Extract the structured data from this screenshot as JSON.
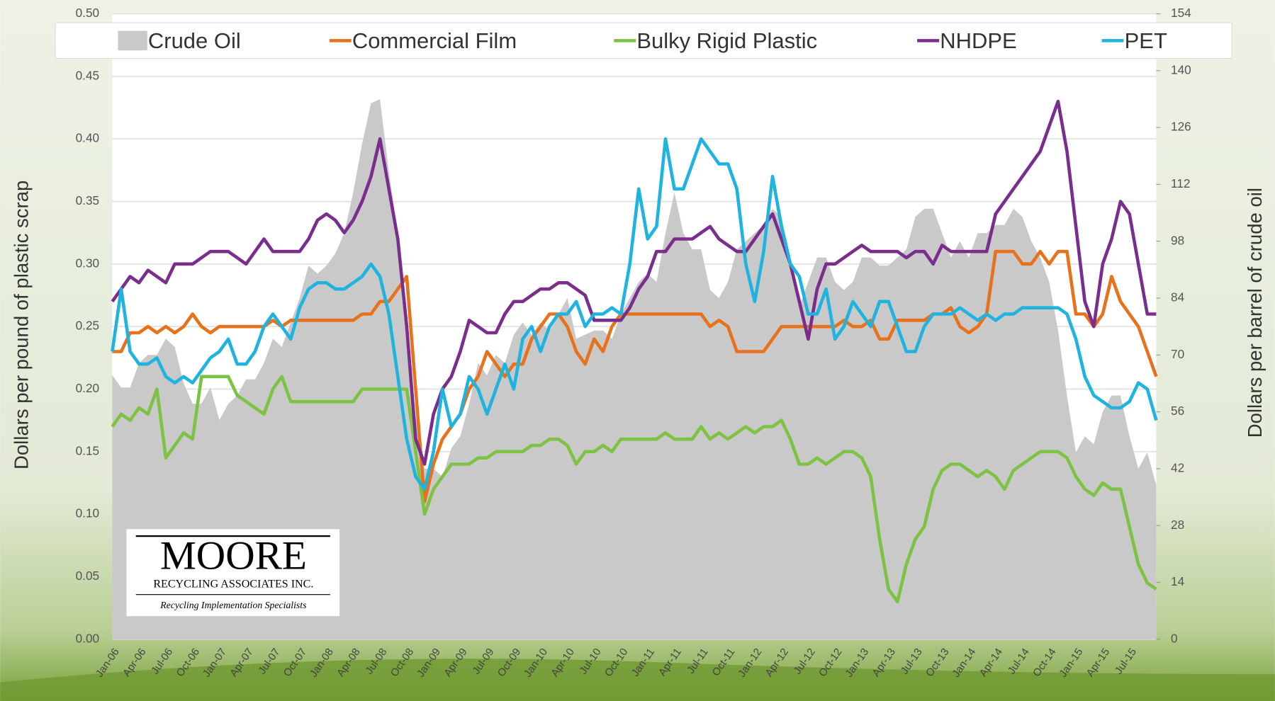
{
  "chart_data": {
    "type": "line",
    "ylabel": "Dollars per pound of plastic scrap",
    "y2label": "Dollars per barrel of crude oil",
    "ylim": [
      0,
      0.5
    ],
    "yticks": [
      {
        "value": 0,
        "label": "0.00"
      },
      0.05,
      {
        "value": 0.1,
        "label": "0.10"
      },
      0.15,
      {
        "value": 0.2,
        "label": "0.20"
      },
      0.25,
      {
        "value": 0.3,
        "label": "0.30"
      },
      0.35,
      {
        "value": 0.4,
        "label": "0.40"
      },
      0.45,
      {
        "value": 0.5,
        "label": "0.50"
      }
    ],
    "y2lim": [
      0,
      154
    ],
    "y2ticks": [
      0,
      14,
      28,
      42,
      56,
      70,
      84,
      98,
      112,
      126,
      140,
      154
    ],
    "grid": true,
    "logo_text": [
      "MOORE",
      "RECYCLING ASSOCIATES INC.",
      "Recycling Implementation Specialists"
    ],
    "categories": [
      "Jan-06",
      null,
      null,
      "Apr-06",
      null,
      null,
      "Jul-06",
      null,
      null,
      "Oct-06",
      null,
      null,
      "Jan-07",
      null,
      null,
      "Apr-07",
      null,
      null,
      "Jul-07",
      null,
      null,
      "Oct-07",
      null,
      null,
      "Jan-08",
      null,
      null,
      "Apr-08",
      null,
      null,
      "Jul-08",
      null,
      null,
      "Oct-08",
      null,
      null,
      "Jan-09",
      null,
      null,
      "Apr-09",
      null,
      null,
      "Jul-09",
      null,
      null,
      "Oct-09",
      null,
      null,
      "Jan-10",
      null,
      null,
      "Apr-10",
      null,
      null,
      "Jul-10",
      null,
      null,
      "Oct-10",
      null,
      null,
      "Jan-11",
      null,
      null,
      "Apr-11",
      null,
      null,
      "Jul-11",
      null,
      null,
      "Oct-11",
      null,
      null,
      "Jan-12",
      null,
      null,
      "Apr-12",
      null,
      null,
      "Jul-12",
      null,
      null,
      "Oct-12",
      null,
      null,
      "Jan-13",
      null,
      null,
      "Apr-13",
      null,
      null,
      "Jul-13",
      null,
      null,
      "Oct-13",
      null,
      null,
      "Jan-14",
      null,
      null,
      "Apr-14",
      null,
      null,
      "Jul-14",
      null,
      null,
      "Oct-14",
      null,
      null,
      "Jan-15",
      null,
      null,
      "Apr-15",
      null,
      null,
      "Jul-15",
      null,
      null,
      null
    ],
    "series": [
      {
        "name": "Crude Oil",
        "color": "#c9c9c9",
        "style": "area",
        "axis": "y2",
        "values": [
          65,
          62,
          62,
          68,
          70,
          70,
          74,
          72,
          63,
          58,
          58,
          62,
          54,
          58,
          60,
          64,
          64,
          68,
          74,
          72,
          78,
          84,
          92,
          90,
          92,
          95,
          100,
          110,
          122,
          132,
          133,
          115,
          100,
          75,
          55,
          42,
          42,
          40,
          47,
          50,
          58,
          68,
          65,
          70,
          68,
          75,
          78,
          75,
          78,
          76,
          80,
          84,
          74,
          75,
          76,
          76,
          74,
          80,
          84,
          88,
          90,
          88,
          100,
          110,
          100,
          96,
          96,
          86,
          84,
          88,
          96,
          98,
          100,
          102,
          106,
          104,
          94,
          82,
          88,
          94,
          94,
          88,
          86,
          88,
          94,
          94,
          92,
          92,
          94,
          96,
          104,
          106,
          106,
          100,
          94,
          98,
          94,
          100,
          100,
          102,
          102,
          106,
          104,
          98,
          94,
          88,
          76,
          60,
          46,
          50,
          48,
          56,
          60,
          60,
          50,
          42,
          46,
          38
        ]
      },
      {
        "name": "Commercial Film",
        "color": "#e8711c",
        "style": "line",
        "values": [
          0.23,
          0.23,
          0.245,
          0.245,
          0.25,
          0.245,
          0.25,
          0.245,
          0.25,
          0.26,
          0.25,
          0.245,
          0.25,
          0.25,
          0.25,
          0.25,
          0.25,
          0.25,
          0.255,
          0.25,
          0.255,
          0.255,
          0.255,
          0.255,
          0.255,
          0.255,
          0.255,
          0.255,
          0.26,
          0.26,
          0.27,
          0.27,
          0.28,
          0.29,
          0.2,
          0.11,
          0.14,
          0.16,
          0.17,
          0.18,
          0.2,
          0.21,
          0.23,
          0.22,
          0.21,
          0.22,
          0.22,
          0.24,
          0.25,
          0.26,
          0.26,
          0.25,
          0.23,
          0.22,
          0.24,
          0.23,
          0.25,
          0.26,
          0.26,
          0.26,
          0.26,
          0.26,
          0.26,
          0.26,
          0.26,
          0.26,
          0.26,
          0.25,
          0.255,
          0.25,
          0.23,
          0.23,
          0.23,
          0.23,
          0.24,
          0.25,
          0.25,
          0.25,
          0.25,
          0.25,
          0.25,
          0.25,
          0.255,
          0.25,
          0.25,
          0.255,
          0.24,
          0.24,
          0.255,
          0.255,
          0.255,
          0.255,
          0.26,
          0.26,
          0.265,
          0.25,
          0.245,
          0.25,
          0.26,
          0.31,
          0.31,
          0.31,
          0.3,
          0.3,
          0.31,
          0.3,
          0.31,
          0.31,
          0.26,
          0.26,
          0.25,
          0.26,
          0.29,
          0.27,
          0.26,
          0.25,
          0.23,
          0.21
        ]
      },
      {
        "name": "Bulky Rigid Plastic",
        "color": "#7dc242",
        "style": "line",
        "values": [
          0.17,
          0.18,
          0.175,
          0.185,
          0.18,
          0.2,
          0.145,
          0.155,
          0.165,
          0.16,
          0.21,
          0.21,
          0.21,
          0.21,
          0.195,
          0.19,
          0.185,
          0.18,
          0.2,
          0.21,
          0.19,
          0.19,
          0.19,
          0.19,
          0.19,
          0.19,
          0.19,
          0.19,
          0.2,
          0.2,
          0.2,
          0.2,
          0.2,
          0.2,
          0.15,
          0.1,
          0.12,
          0.13,
          0.14,
          0.14,
          0.14,
          0.145,
          0.145,
          0.15,
          0.15,
          0.15,
          0.15,
          0.155,
          0.155,
          0.16,
          0.16,
          0.155,
          0.14,
          0.15,
          0.15,
          0.155,
          0.15,
          0.16,
          0.16,
          0.16,
          0.16,
          0.16,
          0.165,
          0.16,
          0.16,
          0.16,
          0.17,
          0.16,
          0.165,
          0.16,
          0.165,
          0.17,
          0.165,
          0.17,
          0.17,
          0.175,
          0.16,
          0.14,
          0.14,
          0.145,
          0.14,
          0.145,
          0.15,
          0.15,
          0.145,
          0.13,
          0.08,
          0.04,
          0.03,
          0.06,
          0.08,
          0.09,
          0.12,
          0.135,
          0.14,
          0.14,
          0.135,
          0.13,
          0.135,
          0.13,
          0.12,
          0.135,
          0.14,
          0.145,
          0.15,
          0.15,
          0.15,
          0.145,
          0.13,
          0.12,
          0.115,
          0.125,
          0.12,
          0.12,
          0.09,
          0.06,
          0.045,
          0.04
        ]
      },
      {
        "name": "NHDPE",
        "color": "#7b2d8e",
        "style": "line",
        "values": [
          0.27,
          0.28,
          0.29,
          0.285,
          0.295,
          0.29,
          0.285,
          0.3,
          0.3,
          0.3,
          0.305,
          0.31,
          0.31,
          0.31,
          0.305,
          0.3,
          0.31,
          0.32,
          0.31,
          0.31,
          0.31,
          0.31,
          0.32,
          0.335,
          0.34,
          0.335,
          0.325,
          0.335,
          0.35,
          0.37,
          0.4,
          0.36,
          0.32,
          0.25,
          0.16,
          0.14,
          0.18,
          0.2,
          0.21,
          0.23,
          0.255,
          0.25,
          0.245,
          0.245,
          0.26,
          0.27,
          0.27,
          0.275,
          0.28,
          0.28,
          0.285,
          0.285,
          0.28,
          0.275,
          0.255,
          0.255,
          0.255,
          0.255,
          0.265,
          0.28,
          0.29,
          0.31,
          0.31,
          0.32,
          0.32,
          0.32,
          0.325,
          0.33,
          0.32,
          0.315,
          0.31,
          0.31,
          0.32,
          0.33,
          0.34,
          0.32,
          0.3,
          0.27,
          0.24,
          0.28,
          0.3,
          0.3,
          0.305,
          0.31,
          0.315,
          0.31,
          0.31,
          0.31,
          0.31,
          0.305,
          0.31,
          0.31,
          0.3,
          0.315,
          0.31,
          0.31,
          0.31,
          0.31,
          0.31,
          0.34,
          0.35,
          0.36,
          0.37,
          0.38,
          0.39,
          0.41,
          0.43,
          0.39,
          0.33,
          0.27,
          0.25,
          0.3,
          0.32,
          0.35,
          0.34,
          0.3,
          0.26,
          0.26
        ]
      },
      {
        "name": "PET",
        "color": "#1fb3e0",
        "style": "line",
        "values": [
          0.23,
          0.28,
          0.23,
          0.22,
          0.22,
          0.225,
          0.21,
          0.205,
          0.21,
          0.205,
          0.215,
          0.225,
          0.23,
          0.24,
          0.22,
          0.22,
          0.23,
          0.25,
          0.26,
          0.25,
          0.24,
          0.265,
          0.28,
          0.285,
          0.285,
          0.28,
          0.28,
          0.285,
          0.29,
          0.3,
          0.29,
          0.26,
          0.21,
          0.16,
          0.13,
          0.12,
          0.15,
          0.2,
          0.17,
          0.18,
          0.21,
          0.2,
          0.18,
          0.2,
          0.22,
          0.2,
          0.24,
          0.25,
          0.23,
          0.25,
          0.26,
          0.26,
          0.27,
          0.25,
          0.26,
          0.26,
          0.265,
          0.26,
          0.3,
          0.36,
          0.32,
          0.33,
          0.4,
          0.36,
          0.36,
          0.38,
          0.4,
          0.39,
          0.38,
          0.38,
          0.36,
          0.3,
          0.27,
          0.31,
          0.37,
          0.33,
          0.3,
          0.29,
          0.26,
          0.26,
          0.28,
          0.24,
          0.25,
          0.27,
          0.26,
          0.25,
          0.27,
          0.27,
          0.25,
          0.23,
          0.23,
          0.25,
          0.26,
          0.26,
          0.26,
          0.265,
          0.26,
          0.255,
          0.26,
          0.255,
          0.26,
          0.26,
          0.265,
          0.265,
          0.265,
          0.265,
          0.265,
          0.26,
          0.24,
          0.21,
          0.195,
          0.19,
          0.185,
          0.185,
          0.19,
          0.205,
          0.2,
          0.175
        ]
      }
    ]
  }
}
